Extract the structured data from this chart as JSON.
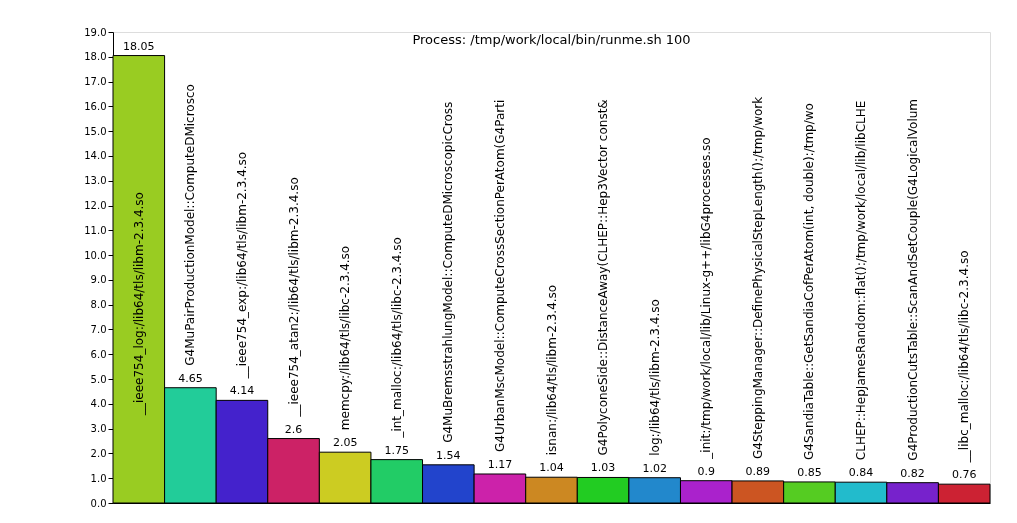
{
  "chart_data": {
    "type": "bar",
    "title": "Process: /tmp/work/local/bin/runme.sh 100",
    "categories": [
      "__ieee754_log:/lib64/tls/libm-2.3.4.so",
      "G4MuPairProductionModel::ComputeDMicrosco",
      "__ieee754_exp:/lib64/tls/libm-2.3.4.so",
      "__ieee754_atan2:/lib64/tls/libm-2.3.4.so",
      "memcpy:/lib64/tls/libc-2.3.4.so",
      "_int_malloc:/lib64/tls/libc-2.3.4.so",
      "G4MuBremsstrahlungModel::ComputeDMicroscopicCross",
      "G4UrbanMscModel::ComputeCrossSectionPerAtom(G4Parti",
      "isnan:/lib64/tls/libm-2.3.4.so",
      "G4PolyconeSide::DistanceAway(CLHEP::Hep3Vector const&",
      "log:/lib64/tls/libm-2.3.4.so",
      "_init:/tmp/work/local/lib/Linux-g++/libG4processes.so",
      "G4SteppingManager::DefinePhysicalStepLength():/tmp/work",
      "G4SandiaTable::GetSandiaCofPerAtom(int, double):/tmp/wo",
      "CLHEP::HepJamesRandom::flat():/tmp/work/local/lib/libCLHE",
      "G4ProductionCutsTable::ScanAndSetCouple(G4LogicalVolum",
      "__libc_malloc:/lib64/tls/libc-2.3.4.so"
    ],
    "values": [
      18.05,
      4.65,
      4.14,
      2.6,
      2.05,
      1.75,
      1.54,
      1.17,
      1.04,
      1.03,
      1.02,
      0.9,
      0.89,
      0.85,
      0.84,
      0.82,
      0.76
    ],
    "colors": [
      "#99cc22",
      "#22cc99",
      "#4422cc",
      "#cc2266",
      "#cccc22",
      "#22cc66",
      "#2244cc",
      "#cc22aa",
      "#cc8822",
      "#22cc22",
      "#2288cc",
      "#aa22cc",
      "#cc5522",
      "#55cc22",
      "#22bbcc",
      "#7722cc",
      "#cc2233"
    ],
    "data_labels": true,
    "ylim": [
      0,
      19
    ],
    "yticks": [
      {
        "value": 0,
        "label": "0.0"
      },
      {
        "value": 1,
        "label": "1.0"
      },
      {
        "value": 2,
        "label": "2.0"
      },
      {
        "value": 3,
        "label": "3.0"
      },
      {
        "value": 4,
        "label": "4.0"
      },
      {
        "value": 5,
        "label": "5.0"
      },
      {
        "value": 6,
        "label": "6.0"
      },
      {
        "value": 7,
        "label": "7.0"
      },
      {
        "value": 8,
        "label": "8.0"
      },
      {
        "value": 9,
        "label": "9.0"
      },
      {
        "value": 10,
        "label": "10.0"
      },
      {
        "value": 11,
        "label": "11.0"
      },
      {
        "value": 12,
        "label": "12.0"
      },
      {
        "value": 13,
        "label": "13.0"
      },
      {
        "value": 14,
        "label": "14.0"
      },
      {
        "value": 15,
        "label": "15.0"
      },
      {
        "value": 16,
        "label": "16.0"
      },
      {
        "value": 17,
        "label": "17.0"
      },
      {
        "value": 18,
        "label": "18.0"
      },
      {
        "value": 19,
        "label": "19.0"
      }
    ],
    "grid": false,
    "legend": false
  }
}
